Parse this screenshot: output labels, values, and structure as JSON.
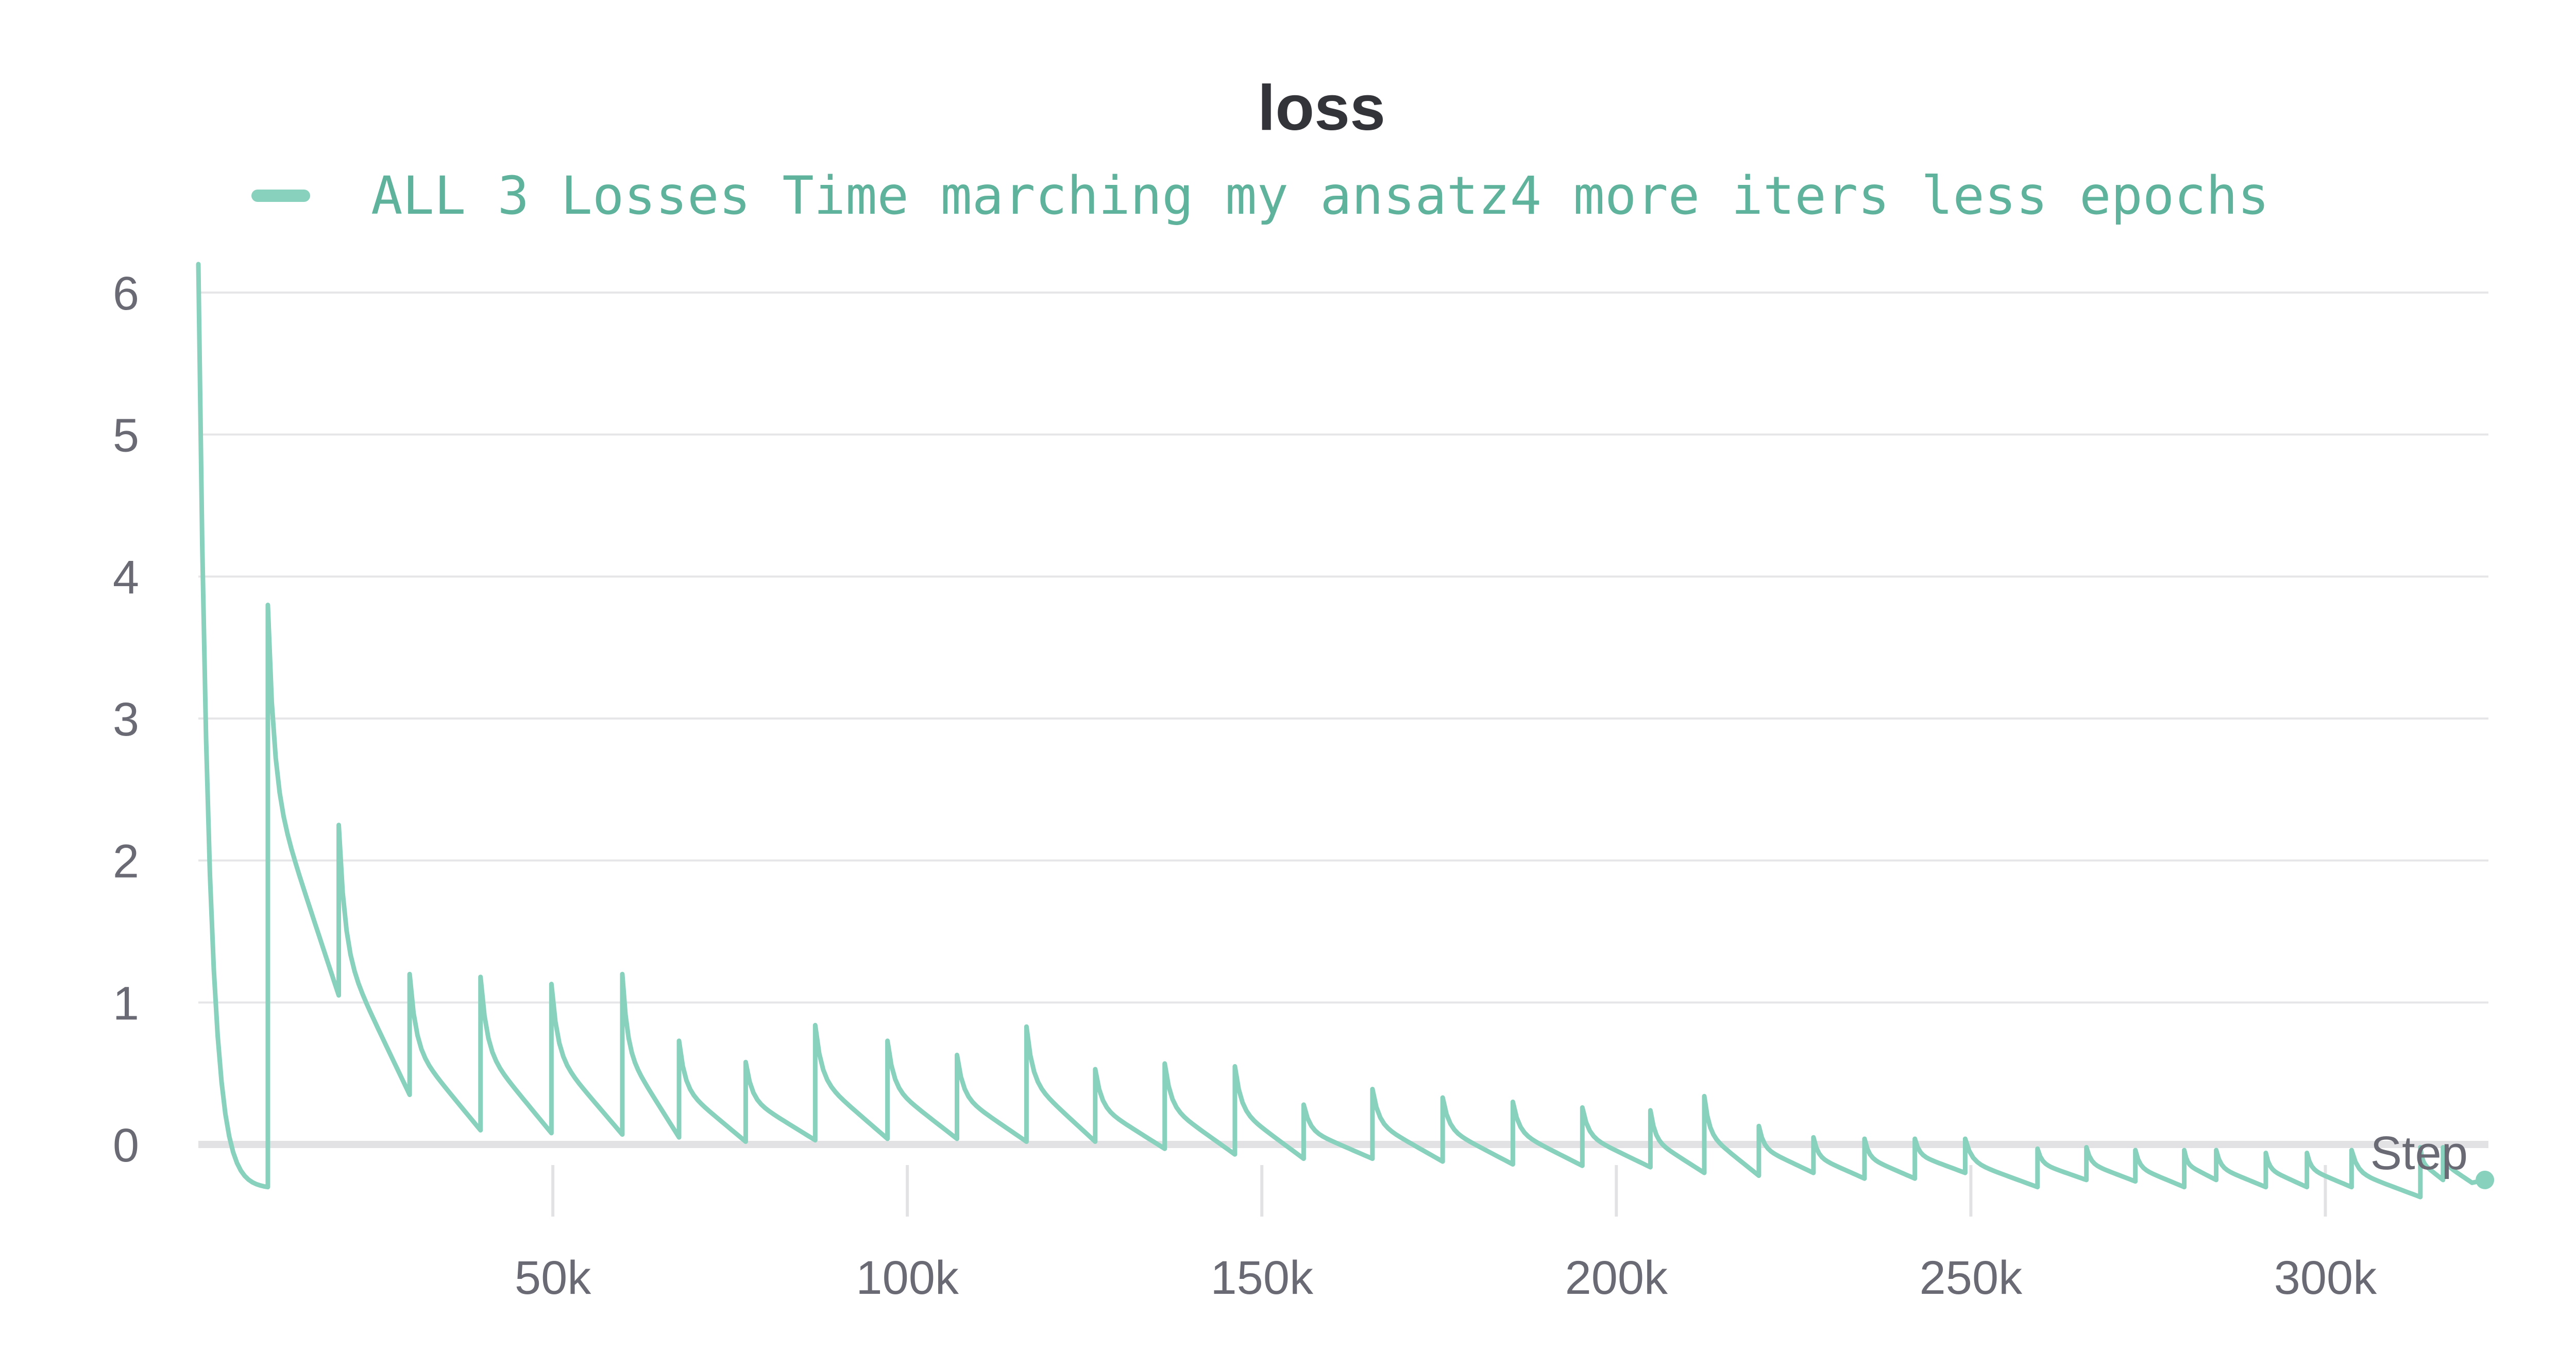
{
  "chart_data": {
    "type": "line",
    "title": "loss",
    "xlabel": "Step",
    "ylabel": "",
    "legend_placement": "top",
    "grid": true,
    "xlim": [
      0,
      323000
    ],
    "ylim": [
      -0.4,
      6.3
    ],
    "x_ticks": [
      50000,
      100000,
      150000,
      200000,
      250000,
      300000
    ],
    "x_tick_labels": [
      "50k",
      "100k",
      "150k",
      "200k",
      "250k",
      "300k"
    ],
    "y_ticks": [
      0,
      1,
      2,
      3,
      4,
      5,
      6
    ],
    "y_tick_labels": [
      "0",
      "1",
      "2",
      "3",
      "4",
      "5",
      "6"
    ],
    "series": [
      {
        "name": "ALL 3 Losses Time marching my ansatz4 more iters less epochs",
        "color": "#87d1bd",
        "cycles": [
          {
            "start": 0,
            "end": 9800,
            "peak": 6.2,
            "low": -0.3
          },
          {
            "start": 9800,
            "end": 19800,
            "peak": 3.8,
            "low": 1.05
          },
          {
            "start": 19800,
            "end": 29800,
            "peak": 2.25,
            "low": 0.35
          },
          {
            "start": 29800,
            "end": 39800,
            "peak": 1.2,
            "low": 0.1
          },
          {
            "start": 39800,
            "end": 49800,
            "peak": 1.18,
            "low": 0.08
          },
          {
            "start": 49800,
            "end": 59800,
            "peak": 1.13,
            "low": 0.07
          },
          {
            "start": 59800,
            "end": 67800,
            "peak": 1.2,
            "low": 0.05
          },
          {
            "start": 67800,
            "end": 77200,
            "peak": 0.73,
            "low": 0.02
          },
          {
            "start": 77200,
            "end": 87000,
            "peak": 0.58,
            "low": 0.03
          },
          {
            "start": 87000,
            "end": 97200,
            "peak": 0.84,
            "low": 0.04
          },
          {
            "start": 97200,
            "end": 107000,
            "peak": 0.73,
            "low": 0.04
          },
          {
            "start": 107000,
            "end": 116800,
            "peak": 0.63,
            "low": 0.02
          },
          {
            "start": 116800,
            "end": 126500,
            "peak": 0.83,
            "low": 0.02
          },
          {
            "start": 126500,
            "end": 136300,
            "peak": 0.53,
            "low": -0.03
          },
          {
            "start": 136300,
            "end": 146200,
            "peak": 0.57,
            "low": -0.07
          },
          {
            "start": 146200,
            "end": 155900,
            "peak": 0.55,
            "low": -0.1
          },
          {
            "start": 155900,
            "end": 165600,
            "peak": 0.28,
            "low": -0.1
          },
          {
            "start": 165600,
            "end": 175500,
            "peak": 0.39,
            "low": -0.12
          },
          {
            "start": 175500,
            "end": 185400,
            "peak": 0.33,
            "low": -0.14
          },
          {
            "start": 185400,
            "end": 195200,
            "peak": 0.3,
            "low": -0.15
          },
          {
            "start": 195200,
            "end": 204800,
            "peak": 0.26,
            "low": -0.16
          },
          {
            "start": 204800,
            "end": 212400,
            "peak": 0.24,
            "low": -0.2
          },
          {
            "start": 212400,
            "end": 220100,
            "peak": 0.34,
            "low": -0.22
          },
          {
            "start": 220100,
            "end": 227800,
            "peak": 0.13,
            "low": -0.2
          },
          {
            "start": 227800,
            "end": 235000,
            "peak": 0.05,
            "low": -0.24
          },
          {
            "start": 235000,
            "end": 242100,
            "peak": 0.04,
            "low": -0.24
          },
          {
            "start": 242100,
            "end": 249200,
            "peak": 0.04,
            "low": -0.2
          },
          {
            "start": 249200,
            "end": 259400,
            "peak": 0.04,
            "low": -0.3
          },
          {
            "start": 259400,
            "end": 266300,
            "peak": -0.03,
            "low": -0.25
          },
          {
            "start": 266300,
            "end": 273200,
            "peak": -0.02,
            "low": -0.26
          },
          {
            "start": 273200,
            "end": 280100,
            "peak": -0.04,
            "low": -0.3
          },
          {
            "start": 280100,
            "end": 284600,
            "peak": -0.04,
            "low": -0.25
          },
          {
            "start": 284600,
            "end": 291600,
            "peak": -0.04,
            "low": -0.3
          },
          {
            "start": 291600,
            "end": 297400,
            "peak": -0.06,
            "low": -0.3
          },
          {
            "start": 297400,
            "end": 303700,
            "peak": -0.06,
            "low": -0.3
          },
          {
            "start": 303700,
            "end": 313400,
            "peak": -0.04,
            "low": -0.37
          },
          {
            "start": 313400,
            "end": 316600,
            "peak": -0.02,
            "low": -0.25
          },
          {
            "start": 316600,
            "end": 320700,
            "peak": -0.02,
            "low": -0.27
          }
        ],
        "last_point": {
          "x": 322500,
          "y": -0.25
        }
      }
    ]
  }
}
